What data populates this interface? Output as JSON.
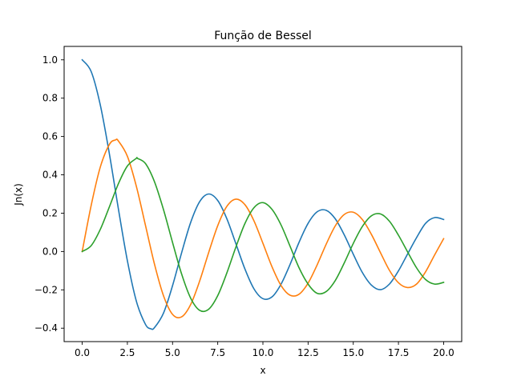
{
  "chart_data": {
    "type": "line",
    "title": "Função de Bessel",
    "xlabel": "x",
    "ylabel": "Jn(x)",
    "xlim": [
      -1.0,
      21.0
    ],
    "ylim": [
      -0.47,
      1.07
    ],
    "grid": false,
    "xticks": [
      0,
      2.5,
      5,
      7.5,
      10,
      12.5,
      15,
      17.5,
      20
    ],
    "xtick_labels": [
      "0.0",
      "2.5",
      "5.0",
      "7.5",
      "10.0",
      "12.5",
      "15.0",
      "17.5",
      "20.0"
    ],
    "yticks": [
      -0.4,
      -0.2,
      0,
      0.2,
      0.4,
      0.6,
      0.8,
      1.0
    ],
    "ytick_labels": [
      "−0.4",
      "−0.2",
      "0.0",
      "0.2",
      "0.4",
      "0.6",
      "0.8",
      "1.0"
    ],
    "series": [
      {
        "color": "#1f77b4",
        "x": [
          0,
          0.5,
          1,
          1.5,
          2,
          2.5,
          3,
          3.5,
          3.8,
          4,
          4.5,
          5,
          5.5,
          6,
          6.5,
          7,
          7.5,
          8,
          8.5,
          9,
          9.5,
          10,
          10.5,
          11,
          11.5,
          12,
          12.5,
          13,
          13.5,
          14,
          14.5,
          15,
          15.5,
          16,
          16.5,
          17,
          17.5,
          18,
          18.5,
          19,
          19.5,
          20
        ],
        "y": [
          1.0,
          0.938,
          0.765,
          0.512,
          0.224,
          -0.048,
          -0.26,
          -0.38,
          -0.403,
          -0.397,
          -0.321,
          -0.178,
          -0.007,
          0.151,
          0.26,
          0.3,
          0.266,
          0.172,
          0.042,
          -0.09,
          -0.194,
          -0.246,
          -0.237,
          -0.171,
          -0.068,
          0.048,
          0.147,
          0.207,
          0.215,
          0.171,
          0.087,
          -0.014,
          -0.109,
          -0.175,
          -0.199,
          -0.17,
          -0.101,
          -0.014,
          0.072,
          0.147,
          0.177,
          0.167
        ]
      },
      {
        "color": "#ff7f0e",
        "x": [
          0,
          0.5,
          1,
          1.5,
          1.84,
          2,
          2.5,
          3,
          3.5,
          4,
          4.5,
          5,
          5.5,
          6,
          6.5,
          7,
          7.5,
          8,
          8.5,
          9,
          9.5,
          10,
          10.5,
          11,
          11.5,
          12,
          12.5,
          13,
          13.5,
          14,
          14.5,
          15,
          15.5,
          16,
          16.5,
          17,
          17.5,
          18,
          18.5,
          19,
          19.5,
          20
        ],
        "y": [
          0,
          0.242,
          0.44,
          0.558,
          0.582,
          0.577,
          0.497,
          0.339,
          0.137,
          -0.066,
          -0.231,
          -0.328,
          -0.341,
          -0.277,
          -0.154,
          -0.005,
          0.135,
          0.235,
          0.273,
          0.245,
          0.161,
          0.043,
          -0.079,
          -0.177,
          -0.228,
          -0.223,
          -0.165,
          -0.07,
          0.038,
          0.133,
          0.193,
          0.205,
          0.167,
          0.09,
          -0.005,
          -0.098,
          -0.163,
          -0.188,
          -0.17,
          -0.106,
          -0.018,
          0.067
        ]
      },
      {
        "color": "#2ca02c",
        "x": [
          0,
          0.5,
          1,
          1.5,
          2,
          2.5,
          3,
          3.05,
          3.5,
          4,
          4.5,
          5,
          5.5,
          6,
          6.5,
          7,
          7.5,
          8,
          8.5,
          9,
          9.5,
          10,
          10.5,
          11,
          11.5,
          12,
          12.5,
          13,
          13.5,
          14,
          14.5,
          15,
          15.5,
          16,
          16.5,
          17,
          17.5,
          18,
          18.5,
          19,
          19.5,
          20
        ],
        "y": [
          0,
          0.031,
          0.115,
          0.232,
          0.353,
          0.446,
          0.486,
          0.486,
          0.459,
          0.364,
          0.218,
          0.047,
          -0.117,
          -0.243,
          -0.307,
          -0.301,
          -0.23,
          -0.113,
          0.022,
          0.145,
          0.228,
          0.255,
          0.22,
          0.139,
          0.028,
          -0.085,
          -0.17,
          -0.218,
          -0.209,
          -0.152,
          -0.06,
          0.042,
          0.13,
          0.186,
          0.196,
          0.158,
          0.085,
          -0.001,
          -0.085,
          -0.146,
          -0.17,
          -0.161
        ]
      }
    ]
  }
}
